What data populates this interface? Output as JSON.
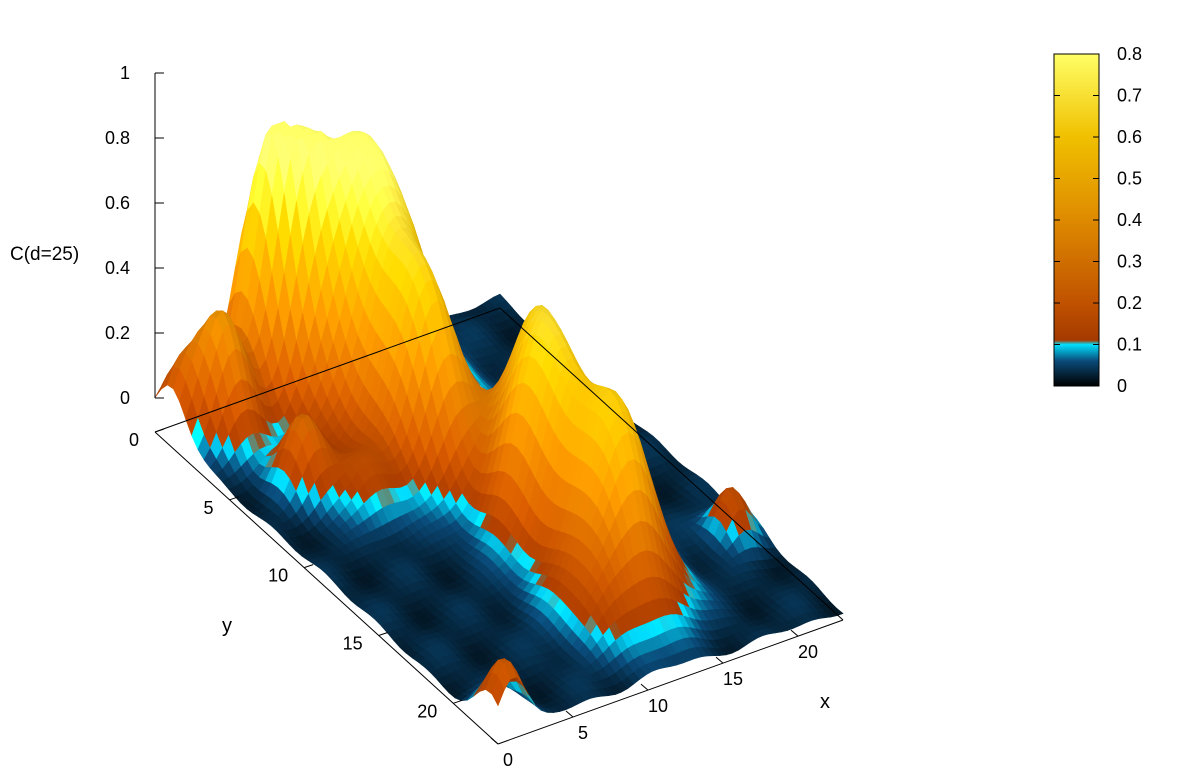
{
  "chart_data": {
    "type": "surface",
    "zlabel": "C(d=25)",
    "xlabel": "x",
    "ylabel": "y",
    "x_ticks": [
      "0",
      "5",
      "10",
      "15",
      "20"
    ],
    "y_ticks": [
      "0",
      "5",
      "10",
      "15",
      "20"
    ],
    "z_ticks": [
      "0",
      "0.2",
      "0.4",
      "0.6",
      "0.8",
      "1"
    ],
    "colorbar_ticks": [
      "0",
      "0.1",
      "0.2",
      "0.3",
      "0.4",
      "0.5",
      "0.6",
      "0.7",
      "0.8"
    ],
    "xlim": [
      0,
      23
    ],
    "ylim": [
      0,
      23
    ],
    "zlim": [
      0,
      1
    ],
    "cblim": [
      0,
      0.8
    ],
    "grid": false,
    "colormap": [
      {
        "stop": 0.0,
        "color": "#000000"
      },
      {
        "stop": 0.06,
        "color": "#0a4a78"
      },
      {
        "stop": 0.1,
        "color": "#00e0ff"
      },
      {
        "stop": 0.11,
        "color": "#a43a00"
      },
      {
        "stop": 0.2,
        "color": "#c05200"
      },
      {
        "stop": 0.4,
        "color": "#de8a00"
      },
      {
        "stop": 0.6,
        "color": "#f0c000"
      },
      {
        "stop": 0.8,
        "color": "#ffff66"
      }
    ],
    "peaks": [
      {
        "x": 11,
        "y": 3,
        "z": 0.82,
        "w": 2.6
      },
      {
        "x": 7.5,
        "y": 1.5,
        "z": 0.55,
        "w": 1.3
      },
      {
        "x": 6,
        "y": 0.5,
        "z": 0.36,
        "w": 1.1
      },
      {
        "x": 10.5,
        "y": 7.8,
        "z": 0.44,
        "w": 1.6
      },
      {
        "x": 12.8,
        "y": 13.5,
        "z": 0.58,
        "w": 1.8
      },
      {
        "x": 14.5,
        "y": 11,
        "z": 0.38,
        "w": 1.5
      },
      {
        "x": 13.5,
        "y": 17.5,
        "z": 0.5,
        "w": 1.7
      },
      {
        "x": 11,
        "y": 19,
        "z": 0.18,
        "w": 1.8
      },
      {
        "x": 2.5,
        "y": 2,
        "z": 0.38,
        "w": 1.2
      },
      {
        "x": 1,
        "y": 22.5,
        "z": 0.2,
        "w": 0.9
      },
      {
        "x": 3.5,
        "y": 6.5,
        "z": 0.22,
        "w": 1.0
      },
      {
        "x": 0.5,
        "y": 1,
        "z": 0.14,
        "w": 0.9
      },
      {
        "x": 21.5,
        "y": 17,
        "z": 0.16,
        "w": 0.8
      },
      {
        "x": 5.5,
        "y": 8.5,
        "z": 0.12,
        "w": 1.2
      }
    ]
  }
}
